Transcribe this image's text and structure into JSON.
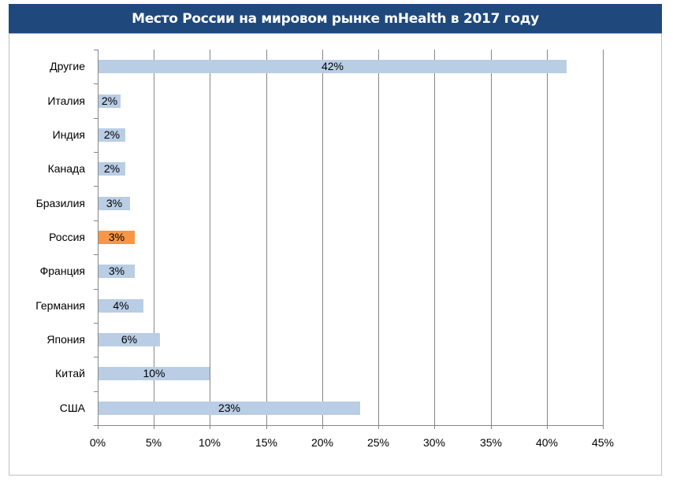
{
  "chart": {
    "title": "Место России на мировом рынке mHealth в 2017 году",
    "colors": {
      "title_bg": "#1F497D",
      "bar": "#B9CDE5",
      "highlight": "#F79646",
      "grid": "#868686"
    },
    "categories": [
      "Другие",
      "Италия",
      "Индия",
      "Канада",
      "Бразилия",
      "Россия",
      "Франция",
      "Германия",
      "Япония",
      "Китай",
      "США"
    ],
    "bar_labels": [
      "42%",
      "2%",
      "2%",
      "2%",
      "3%",
      "3%",
      "3%",
      "4%",
      "6%",
      "10%",
      "23%"
    ],
    "x_ticks": [
      "0%",
      "5%",
      "10%",
      "15%",
      "20%",
      "25%",
      "30%",
      "35%",
      "40%",
      "45%"
    ]
  },
  "chart_data": {
    "type": "bar",
    "orientation": "horizontal",
    "title": "Место России на мировом рынке mHealth в 2017 году",
    "categories": [
      "Другие",
      "Италия",
      "Индия",
      "Канада",
      "Бразилия",
      "Россия",
      "Франция",
      "Германия",
      "Япония",
      "Китай",
      "США"
    ],
    "values": [
      41.7,
      2.0,
      2.4,
      2.4,
      2.8,
      3.2,
      3.2,
      4.0,
      5.5,
      9.9,
      23.3
    ],
    "data_labels": [
      "42%",
      "2%",
      "2%",
      "2%",
      "3%",
      "3%",
      "3%",
      "4%",
      "6%",
      "10%",
      "23%"
    ],
    "highlighted_category": "Россия",
    "xlabel": "",
    "ylabel": "",
    "xlim": [
      0,
      45
    ],
    "x_tick_step": 5,
    "x_tick_format": "percent",
    "grid": "vertical major gridlines",
    "legend": "none"
  }
}
